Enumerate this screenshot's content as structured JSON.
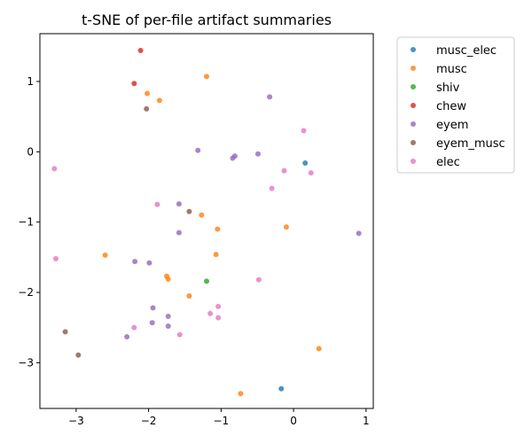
{
  "chart_data": {
    "type": "scatter",
    "title": "t-SNE of per-file artifact summaries",
    "xlabel": "",
    "ylabel": "",
    "xlim": [
      -3.5,
      1.1
    ],
    "ylim": [
      -3.65,
      1.68
    ],
    "xticks": [
      -3,
      -2,
      -1,
      0,
      1
    ],
    "yticks": [
      1,
      0,
      -1,
      -2,
      -3
    ],
    "grid": false,
    "legend_position": "upper right outside",
    "series": [
      {
        "name": "musc_elec",
        "color": "#1f77b4",
        "points": [
          [
            0.16,
            -0.16
          ],
          [
            -0.17,
            -3.37
          ]
        ]
      },
      {
        "name": "musc",
        "color": "#ff7f0e",
        "points": [
          [
            -1.2,
            1.07
          ],
          [
            -2.02,
            0.83
          ],
          [
            -1.85,
            0.73
          ],
          [
            -1.27,
            -0.9
          ],
          [
            -1.05,
            -1.1
          ],
          [
            -0.1,
            -1.07
          ],
          [
            -2.6,
            -1.47
          ],
          [
            -1.07,
            -1.46
          ],
          [
            -1.75,
            -1.77
          ],
          [
            -1.73,
            -1.81
          ],
          [
            -1.44,
            -2.05
          ],
          [
            0.35,
            -2.8
          ],
          [
            -0.73,
            -3.44
          ]
        ]
      },
      {
        "name": "shiv",
        "color": "#2ca02c",
        "points": [
          [
            -1.2,
            -1.84
          ]
        ]
      },
      {
        "name": "chew",
        "color": "#d62728",
        "points": [
          [
            -2.11,
            1.44
          ],
          [
            -2.2,
            0.97
          ]
        ]
      },
      {
        "name": "eyem",
        "color": "#9467bd",
        "points": [
          [
            -0.33,
            0.78
          ],
          [
            -1.32,
            0.02
          ],
          [
            -0.81,
            -0.06
          ],
          [
            -0.84,
            -0.09
          ],
          [
            -0.49,
            -0.03
          ],
          [
            -1.58,
            -0.74
          ],
          [
            -1.58,
            -1.15
          ],
          [
            0.9,
            -1.16
          ],
          [
            -2.19,
            -1.56
          ],
          [
            -1.99,
            -1.58
          ],
          [
            -1.94,
            -2.22
          ],
          [
            -1.73,
            -2.34
          ],
          [
            -1.95,
            -2.43
          ],
          [
            -1.73,
            -2.48
          ],
          [
            -2.3,
            -2.63
          ]
        ]
      },
      {
        "name": "eyem_musc",
        "color": "#8c564b",
        "points": [
          [
            -2.03,
            0.61
          ],
          [
            -1.44,
            -0.85
          ],
          [
            -3.15,
            -2.56
          ],
          [
            -2.97,
            -2.89
          ]
        ]
      },
      {
        "name": "elec",
        "color": "#e377c2",
        "points": [
          [
            0.14,
            0.3
          ],
          [
            -3.3,
            -0.24
          ],
          [
            -0.13,
            -0.27
          ],
          [
            0.24,
            -0.3
          ],
          [
            -0.3,
            -0.52
          ],
          [
            -1.88,
            -0.75
          ],
          [
            -3.28,
            -1.52
          ],
          [
            -0.48,
            -1.82
          ],
          [
            -1.04,
            -2.2
          ],
          [
            -1.15,
            -2.3
          ],
          [
            -1.04,
            -2.36
          ],
          [
            -2.2,
            -2.5
          ],
          [
            -1.57,
            -2.6
          ]
        ]
      }
    ]
  }
}
